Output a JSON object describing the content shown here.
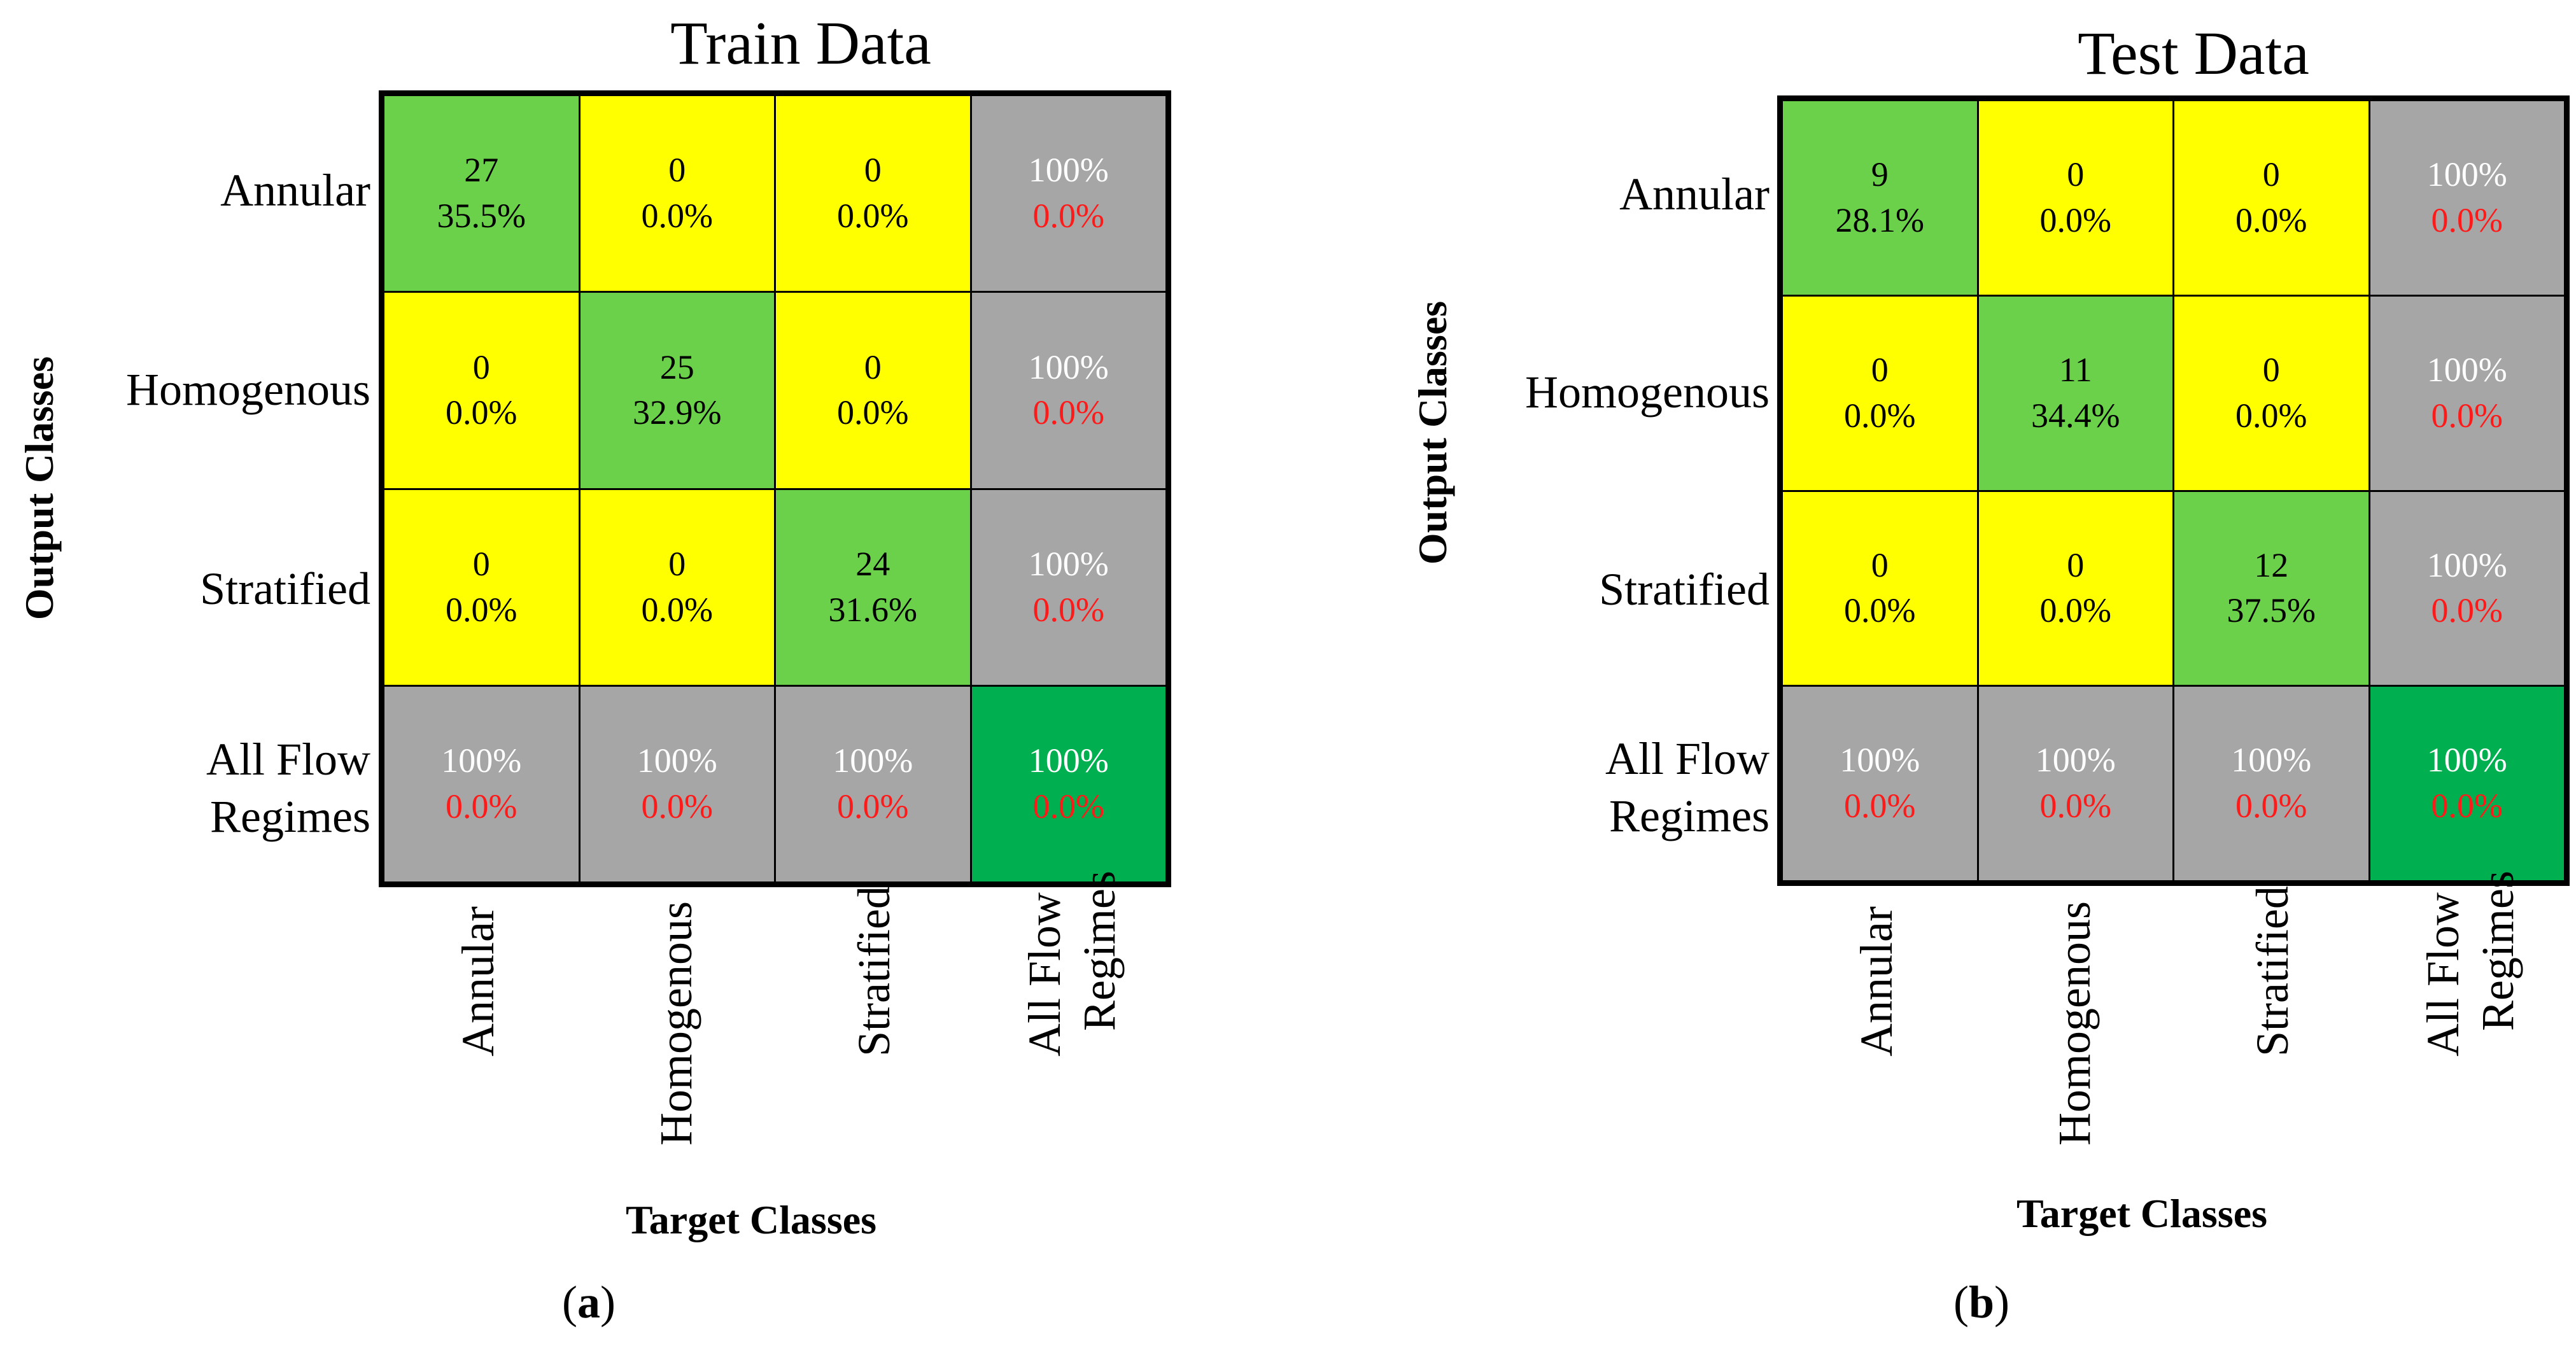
{
  "chart_data": [
    {
      "type": "heatmap",
      "subtype": "confusion_matrix",
      "title": "Train Data",
      "xlabel": "Target Classes",
      "ylabel": "Output Classes",
      "panel_label": "a",
      "classes": [
        "Annular",
        "Homogenous",
        "Stratified"
      ],
      "summary_label": [
        "All Flow",
        "Regimes"
      ],
      "counts": [
        [
          27,
          0,
          0
        ],
        [
          0,
          25,
          0
        ],
        [
          0,
          0,
          24
        ]
      ],
      "percentages": [
        [
          "35.5%",
          "0.0%",
          "0.0%"
        ],
        [
          "0.0%",
          "32.9%",
          "0.0%"
        ],
        [
          "0.0%",
          "0.0%",
          "31.6%"
        ]
      ],
      "row_summary": [
        [
          "100%",
          "0.0%"
        ],
        [
          "100%",
          "0.0%"
        ],
        [
          "100%",
          "0.0%"
        ]
      ],
      "col_summary": [
        [
          "100%",
          "0.0%"
        ],
        [
          "100%",
          "0.0%"
        ],
        [
          "100%",
          "0.0%"
        ]
      ],
      "overall": [
        "100%",
        "0.0%"
      ]
    },
    {
      "type": "heatmap",
      "subtype": "confusion_matrix",
      "title": "Test Data",
      "xlabel": "Target Classes",
      "ylabel": "Output Classes",
      "panel_label": "b",
      "classes": [
        "Annular",
        "Homogenous",
        "Stratified"
      ],
      "summary_label": [
        "All Flow",
        "Regimes"
      ],
      "counts": [
        [
          9,
          0,
          0
        ],
        [
          0,
          11,
          0
        ],
        [
          0,
          0,
          12
        ]
      ],
      "percentages": [
        [
          "28.1%",
          "0.0%",
          "0.0%"
        ],
        [
          "0.0%",
          "34.4%",
          "0.0%"
        ],
        [
          "0.0%",
          "0.0%",
          "37.5%"
        ]
      ],
      "row_summary": [
        [
          "100%",
          "0.0%"
        ],
        [
          "100%",
          "0.0%"
        ],
        [
          "100%",
          "0.0%"
        ]
      ],
      "col_summary": [
        [
          "100%",
          "0.0%"
        ],
        [
          "100%",
          "0.0%"
        ],
        [
          "100%",
          "0.0%"
        ]
      ],
      "overall": [
        "100%",
        "0.0%"
      ]
    }
  ],
  "colors": {
    "diagonal": "#6cd14a",
    "off_diagonal": "#ffff00",
    "summary": "#a6a6a6",
    "overall": "#00b050",
    "error_text": "#ff1a1a",
    "summary_text": "#ffffff"
  }
}
